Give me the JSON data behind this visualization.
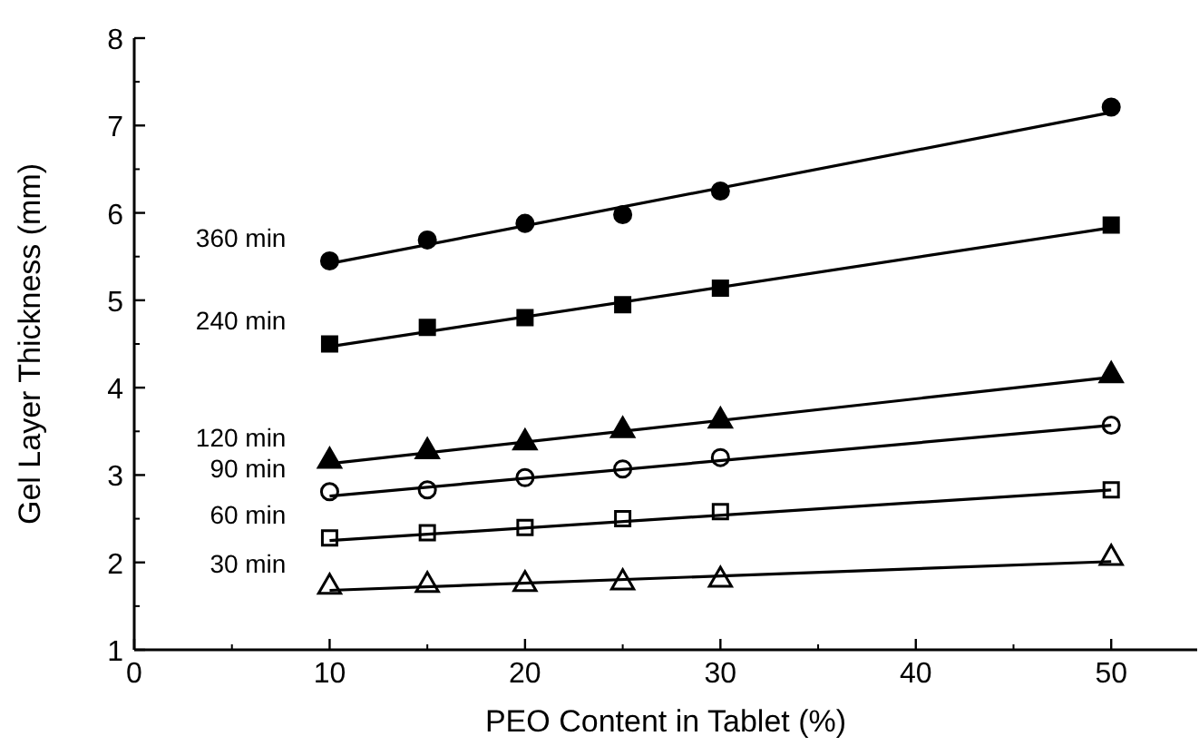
{
  "chart_data": {
    "type": "scatter",
    "xlabel": "PEO Content in Tablet (%)",
    "ylabel": "Gel Layer Thickness (mm)",
    "xlim": [
      0,
      54.4
    ],
    "xticks": [
      0,
      10,
      20,
      30,
      40,
      50
    ],
    "ylim": [
      1,
      8
    ],
    "yticks": [
      1,
      2,
      3,
      4,
      5,
      6,
      7,
      8
    ],
    "series": [
      {
        "name": "360 min",
        "color": "#000000",
        "marker": "circle",
        "x": [
          10,
          15,
          20,
          25,
          30,
          50
        ],
        "values": [
          5.45,
          5.69,
          5.88,
          5.98,
          6.25,
          7.21
        ]
      },
      {
        "name": "240 min",
        "color": "#000000",
        "marker": "square",
        "x": [
          10,
          15,
          20,
          25,
          30,
          50
        ],
        "values": [
          4.5,
          4.69,
          4.8,
          4.95,
          5.14,
          5.86
        ]
      },
      {
        "name": "120 min",
        "color": "#000000",
        "marker": "triangle",
        "x": [
          10,
          15,
          20,
          25,
          30,
          50
        ],
        "values": [
          3.16,
          3.27,
          3.37,
          3.51,
          3.62,
          4.14
        ]
      },
      {
        "name": "90 min",
        "color": "#000000",
        "marker": "circle-open",
        "x": [
          10,
          15,
          20,
          25,
          30,
          50
        ],
        "values": [
          2.81,
          2.83,
          2.97,
          3.07,
          3.2,
          3.57
        ]
      },
      {
        "name": "60 min",
        "color": "#000000",
        "marker": "square-open",
        "x": [
          10,
          15,
          20,
          25,
          30,
          50
        ],
        "values": [
          2.28,
          2.34,
          2.4,
          2.5,
          2.58,
          2.83
        ]
      },
      {
        "name": "30 min",
        "color": "#000000",
        "marker": "triangle-open",
        "x": [
          10,
          15,
          20,
          25,
          30,
          50
        ],
        "values": [
          1.72,
          1.74,
          1.75,
          1.77,
          1.8,
          2.05
        ]
      },
      {
        "type": "line",
        "color": "#000000",
        "marker": "none",
        "x": [
          10,
          50
        ],
        "values": [
          5.42,
          7.15
        ]
      },
      {
        "type": "line",
        "color": "#000000",
        "marker": "none",
        "x": [
          10,
          50
        ],
        "values": [
          4.47,
          5.83
        ]
      },
      {
        "type": "line",
        "color": "#000000",
        "marker": "none",
        "x": [
          10,
          50
        ],
        "values": [
          3.13,
          4.12
        ]
      },
      {
        "type": "line",
        "color": "#000000",
        "marker": "none",
        "x": [
          10,
          50
        ],
        "values": [
          2.76,
          3.57
        ]
      },
      {
        "type": "line",
        "color": "#000000",
        "marker": "none",
        "x": [
          10,
          50
        ],
        "values": [
          2.25,
          2.83
        ]
      },
      {
        "type": "line",
        "color": "#000000",
        "marker": "none",
        "x": [
          10,
          50
        ],
        "values": [
          1.68,
          2.01
        ]
      }
    ]
  }
}
